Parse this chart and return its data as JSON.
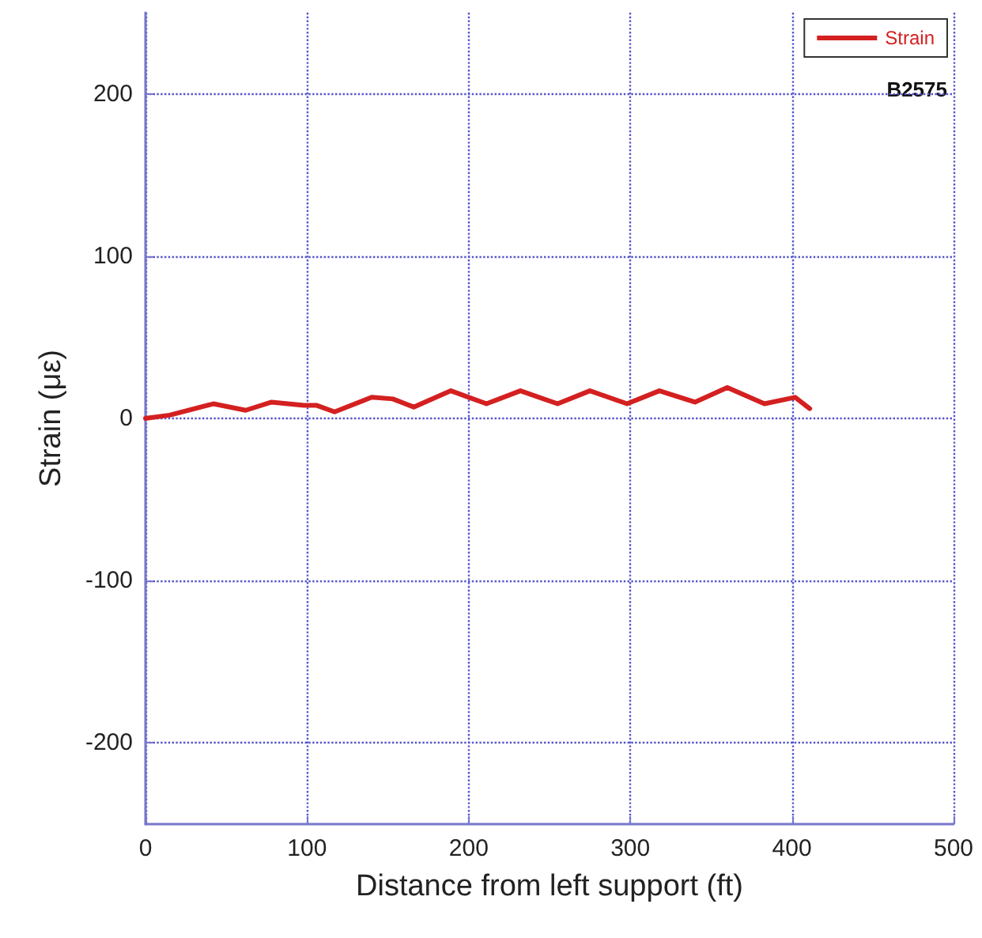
{
  "chart_data": {
    "type": "line",
    "xlabel": "Distance from left support (ft)",
    "ylabel": "Strain (με)",
    "annotations": [
      "B2575"
    ],
    "series": [
      {
        "name": "Strain",
        "color": "#d42020",
        "x": [
          0,
          15,
          42,
          62,
          78,
          98,
          106,
          117,
          140,
          153,
          166,
          189,
          211,
          232,
          255,
          275,
          298,
          318,
          340,
          360,
          383,
          402,
          411
        ],
        "values": [
          0,
          2,
          9,
          5,
          10,
          8,
          8,
          4,
          13,
          12,
          7,
          17,
          9,
          17,
          9,
          17,
          9,
          17,
          10,
          19,
          9,
          13,
          6
        ]
      }
    ],
    "xlim": [
      0,
      500
    ],
    "xticks": [
      0,
      100,
      200,
      300,
      400,
      500
    ],
    "ylim": [
      -250,
      250
    ],
    "yticks": [
      -200,
      -100,
      0,
      100,
      200
    ],
    "grid": true,
    "legend": "top right",
    "marker": "none",
    "line_style": "solid"
  }
}
